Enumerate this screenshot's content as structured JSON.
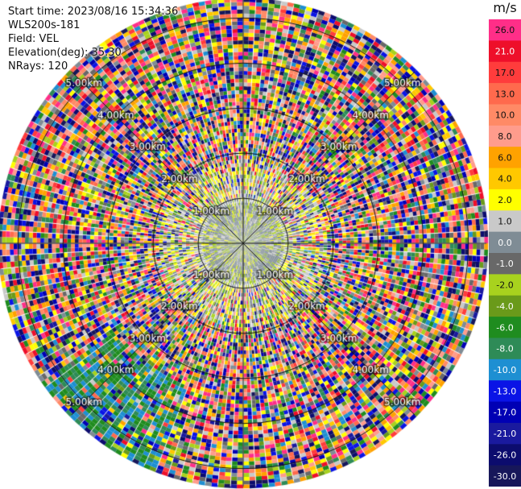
{
  "header": {
    "start_time": "Start time: 2023/08/16 15:34:36",
    "instrument": "WLS200s-181",
    "field": "Field: VEL",
    "elevation": "Elevation(deg): 35.30",
    "nrays": "NRays: 120"
  },
  "colorbar": {
    "unit": "m/s",
    "levels": [
      {
        "label": "26.0",
        "color": "#ff2e88"
      },
      {
        "label": "21.0",
        "color": "#ee0f2a"
      },
      {
        "label": "17.0",
        "color": "#ff3c3c"
      },
      {
        "label": "13.0",
        "color": "#ff6a4d"
      },
      {
        "label": "10.0",
        "color": "#ff8a66"
      },
      {
        "label": "8.0",
        "color": "#ff9c8c"
      },
      {
        "label": "6.0",
        "color": "#ffa200"
      },
      {
        "label": "4.0",
        "color": "#ffc800"
      },
      {
        "label": "2.0",
        "color": "#ffff00"
      },
      {
        "label": "1.0",
        "color": "#c9c9c9"
      },
      {
        "label": "0.0",
        "color": "#7f8c95"
      },
      {
        "label": "-1.0",
        "color": "#686868"
      },
      {
        "label": "-2.0",
        "color": "#a8d21e"
      },
      {
        "label": "-4.0",
        "color": "#6a9a1a"
      },
      {
        "label": "-6.0",
        "color": "#1f8c1f"
      },
      {
        "label": "-8.0",
        "color": "#2e8b57"
      },
      {
        "label": "-10.0",
        "color": "#1e8fd2"
      },
      {
        "label": "-13.0",
        "color": "#0a14e6"
      },
      {
        "label": "-17.0",
        "color": "#0000b4"
      },
      {
        "label": "-21.0",
        "color": "#1a1a9e"
      },
      {
        "label": "-26.0",
        "color": "#0c0c6e"
      },
      {
        "label": "-30.0",
        "color": "#17175a"
      }
    ]
  },
  "chart_data": {
    "type": "heatmap",
    "title": "Start time: 2023/08/16 15:34:36",
    "subtitle": "WLS200s-181",
    "field": "VEL",
    "units": "m/s",
    "elevation_deg": 35.3,
    "n_rays": 120,
    "range_rings_km": [
      1.0,
      2.0,
      3.0,
      4.0,
      5.0
    ],
    "ring_labels": [
      "1.00km",
      "2.00km",
      "3.00km",
      "4.00km",
      "5.00km"
    ],
    "max_range_km": 5.4,
    "center_region": {
      "radius_km": 0.95,
      "dominant_values_ms": [
        0.0,
        1.0,
        -2.0,
        2.0
      ]
    },
    "outer_region": "noisy, values span the full range -30.0 to 26.0 m/s",
    "lower_left_sector": {
      "azimuth_range_deg": [
        200,
        235
      ],
      "range_km": [
        3.4,
        5.4
      ],
      "dominant_values_ms": [
        -6.0,
        -8.0,
        -10.0
      ]
    }
  }
}
